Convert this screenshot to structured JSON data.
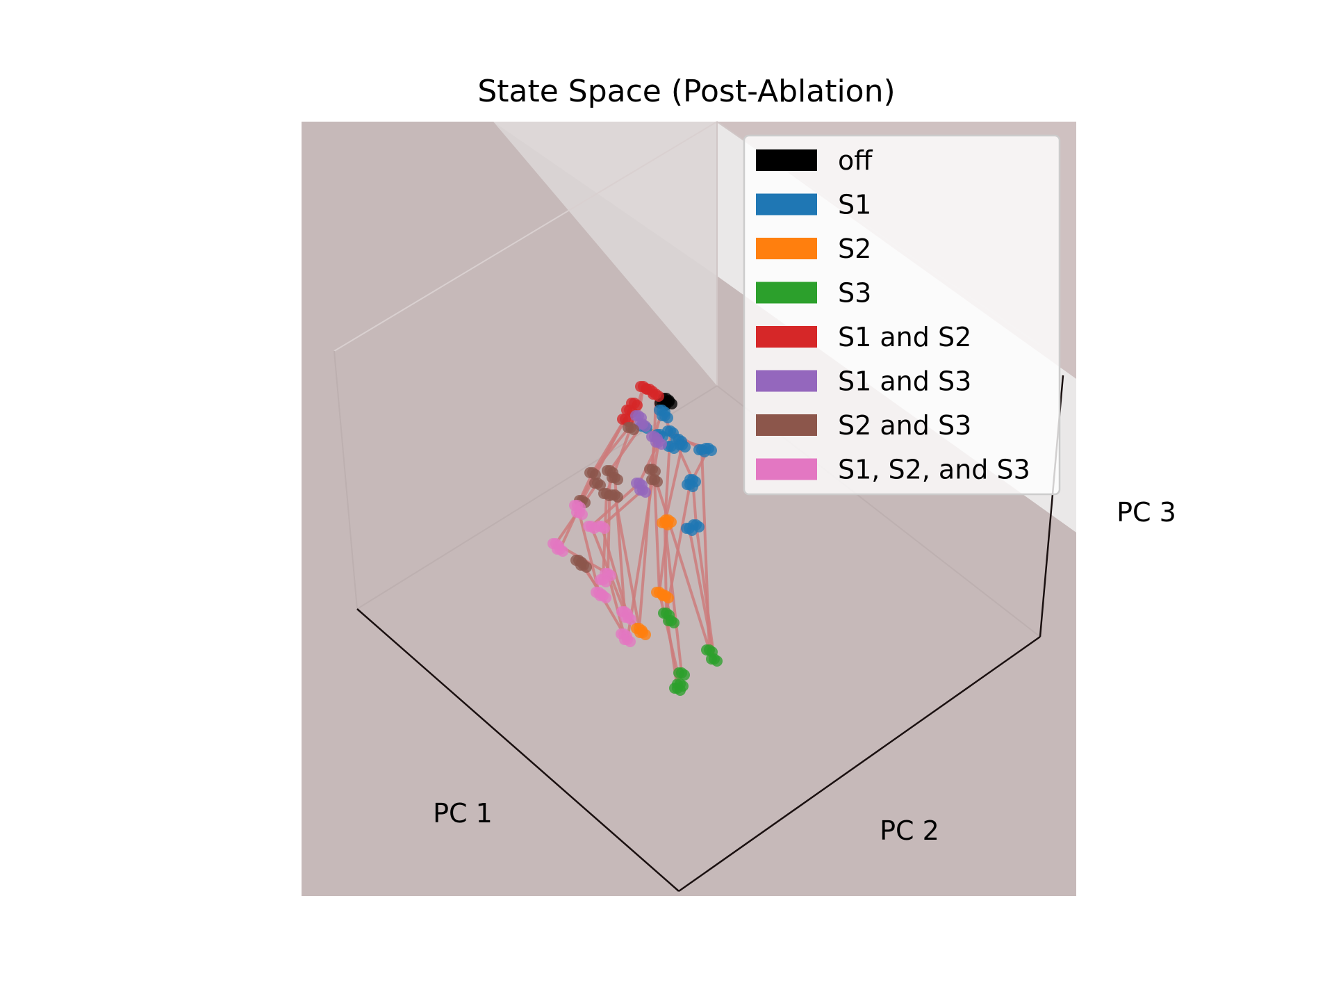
{
  "chart_data": {
    "type": "scatter",
    "projection": "3d",
    "title": "State Space (Post-Ablation)",
    "xlabel": "PC 1",
    "ylabel": "PC 2",
    "zlabel": "PC 3",
    "grid": false,
    "legend_position": "top-right",
    "connections_color": "#cd7b7b",
    "series": [
      {
        "name": "off",
        "color": "#000000",
        "points": [
          [
            959,
            573
          ],
          [
            954,
            580
          ],
          [
            963,
            578
          ]
        ]
      },
      {
        "name": "S1",
        "color": "#1f77b4",
        "points": [
          [
            953,
            590
          ],
          [
            957,
            598
          ],
          [
            965,
            620
          ],
          [
            977,
            632
          ],
          [
            982,
            640
          ],
          [
            966,
            642
          ],
          [
            1010,
            647
          ],
          [
            1020,
            645
          ],
          [
            997,
            690
          ],
          [
            993,
            697
          ],
          [
            1002,
            755
          ],
          [
            992,
            760
          ],
          [
            927,
            613
          ],
          [
            950,
            625
          ]
        ]
      },
      {
        "name": "S2",
        "color": "#ff7f0e",
        "points": [
          [
            957,
            752
          ],
          [
            962,
            748
          ],
          [
            949,
            852
          ],
          [
            958,
            857
          ],
          [
            920,
            904
          ],
          [
            925,
            910
          ]
        ]
      },
      {
        "name": "S3",
        "color": "#2ca02c",
        "points": [
          [
            959,
            882
          ],
          [
            966,
            893
          ],
          [
            1021,
            935
          ],
          [
            1028,
            948
          ],
          [
            981,
            968
          ],
          [
            979,
            984
          ],
          [
            975,
            990
          ]
        ]
      },
      {
        "name": "S1 and S2",
        "color": "#d62728",
        "points": [
          [
            926,
            556
          ],
          [
            935,
            560
          ],
          [
            944,
            567
          ],
          [
            913,
            580
          ],
          [
            906,
            590
          ],
          [
            900,
            603
          ]
        ]
      },
      {
        "name": "S1 and S3",
        "color": "#9467bd",
        "points": [
          [
            919,
            598
          ],
          [
            925,
            610
          ],
          [
            942,
            628
          ],
          [
            948,
            636
          ],
          [
            920,
            695
          ],
          [
            925,
            705
          ]
        ]
      },
      {
        "name": "S2 and S3",
        "color": "#8c564b",
        "points": [
          [
            908,
            615
          ],
          [
            853,
            680
          ],
          [
            860,
            695
          ],
          [
            878,
            677
          ],
          [
            885,
            687
          ],
          [
            873,
            710
          ],
          [
            885,
            712
          ],
          [
            939,
            675
          ],
          [
            942,
            690
          ],
          [
            838,
            720
          ],
          [
            833,
            806
          ],
          [
            840,
            813
          ]
        ]
      },
      {
        "name": "S1, S2, and S3",
        "color": "#e377c2",
        "points": [
          [
            831,
            727
          ],
          [
            834,
            737
          ],
          [
            800,
            782
          ],
          [
            806,
            790
          ],
          [
            851,
            757
          ],
          [
            866,
            757
          ],
          [
            875,
            825
          ],
          [
            868,
            834
          ],
          [
            862,
            852
          ],
          [
            868,
            857
          ],
          [
            899,
            880
          ],
          [
            904,
            888
          ],
          [
            898,
            912
          ],
          [
            903,
            920
          ]
        ]
      }
    ],
    "connections": [
      [
        [
          959,
          573
        ],
        [
          926,
          556
        ]
      ],
      [
        [
          959,
          573
        ],
        [
          953,
          590
        ]
      ],
      [
        [
          959,
          573
        ],
        [
          944,
          567
        ]
      ],
      [
        [
          926,
          556
        ],
        [
          919,
          598
        ]
      ],
      [
        [
          926,
          556
        ],
        [
          908,
          615
        ]
      ],
      [
        [
          944,
          567
        ],
        [
          942,
          628
        ]
      ],
      [
        [
          913,
          580
        ],
        [
          853,
          680
        ]
      ],
      [
        [
          906,
          590
        ],
        [
          838,
          720
        ]
      ],
      [
        [
          900,
          603
        ],
        [
          831,
          727
        ]
      ],
      [
        [
          953,
          590
        ],
        [
          965,
          620
        ]
      ],
      [
        [
          953,
          590
        ],
        [
          942,
          628
        ]
      ],
      [
        [
          965,
          620
        ],
        [
          1010,
          647
        ]
      ],
      [
        [
          965,
          620
        ],
        [
          997,
          690
        ]
      ],
      [
        [
          977,
          632
        ],
        [
          1020,
          645
        ]
      ],
      [
        [
          982,
          640
        ],
        [
          957,
          752
        ]
      ],
      [
        [
          1010,
          647
        ],
        [
          1021,
          935
        ]
      ],
      [
        [
          997,
          690
        ],
        [
          1002,
          755
        ]
      ],
      [
        [
          1002,
          755
        ],
        [
          1028,
          948
        ]
      ],
      [
        [
          919,
          598
        ],
        [
          853,
          680
        ]
      ],
      [
        [
          925,
          610
        ],
        [
          878,
          677
        ]
      ],
      [
        [
          942,
          628
        ],
        [
          939,
          675
        ]
      ],
      [
        [
          948,
          636
        ],
        [
          920,
          695
        ]
      ],
      [
        [
          920,
          695
        ],
        [
          851,
          757
        ]
      ],
      [
        [
          925,
          705
        ],
        [
          866,
          757
        ]
      ],
      [
        [
          908,
          615
        ],
        [
          873,
          710
        ]
      ],
      [
        [
          853,
          680
        ],
        [
          831,
          727
        ]
      ],
      [
        [
          860,
          695
        ],
        [
          800,
          782
        ]
      ],
      [
        [
          878,
          677
        ],
        [
          875,
          825
        ]
      ],
      [
        [
          885,
          687
        ],
        [
          899,
          880
        ]
      ],
      [
        [
          873,
          710
        ],
        [
          868,
          834
        ]
      ],
      [
        [
          885,
          712
        ],
        [
          920,
          904
        ]
      ],
      [
        [
          939,
          675
        ],
        [
          962,
          748
        ]
      ],
      [
        [
          942,
          690
        ],
        [
          949,
          852
        ]
      ],
      [
        [
          838,
          720
        ],
        [
          806,
          790
        ]
      ],
      [
        [
          833,
          806
        ],
        [
          868,
          857
        ]
      ],
      [
        [
          840,
          813
        ],
        [
          898,
          912
        ]
      ],
      [
        [
          831,
          727
        ],
        [
          862,
          852
        ]
      ],
      [
        [
          800,
          782
        ],
        [
          875,
          825
        ]
      ],
      [
        [
          851,
          757
        ],
        [
          899,
          880
        ]
      ],
      [
        [
          866,
          757
        ],
        [
          904,
          888
        ]
      ],
      [
        [
          875,
          825
        ],
        [
          898,
          912
        ]
      ],
      [
        [
          899,
          880
        ],
        [
          920,
          904
        ]
      ],
      [
        [
          957,
          752
        ],
        [
          959,
          882
        ]
      ],
      [
        [
          962,
          748
        ],
        [
          949,
          852
        ]
      ],
      [
        [
          957,
          752
        ],
        [
          981,
          968
        ]
      ],
      [
        [
          949,
          852
        ],
        [
          979,
          984
        ]
      ],
      [
        [
          958,
          857
        ],
        [
          966,
          893
        ]
      ],
      [
        [
          962,
          748
        ],
        [
          1021,
          935
        ]
      ],
      [
        [
          959,
          882
        ],
        [
          975,
          990
        ]
      ],
      [
        [
          950,
          625
        ],
        [
          927,
          613
        ]
      ],
      [
        [
          927,
          613
        ],
        [
          913,
          580
        ]
      ],
      [
        [
          965,
          620
        ],
        [
          957,
          752
        ]
      ],
      [
        [
          942,
          628
        ],
        [
          920,
          904
        ]
      ],
      [
        [
          992,
          760
        ],
        [
          1028,
          948
        ]
      ],
      [
        [
          1020,
          645
        ],
        [
          993,
          697
        ]
      ],
      [
        [
          993,
          697
        ],
        [
          959,
          882
        ]
      ],
      [
        [
          948,
          636
        ],
        [
          903,
          920
        ]
      ]
    ]
  }
}
